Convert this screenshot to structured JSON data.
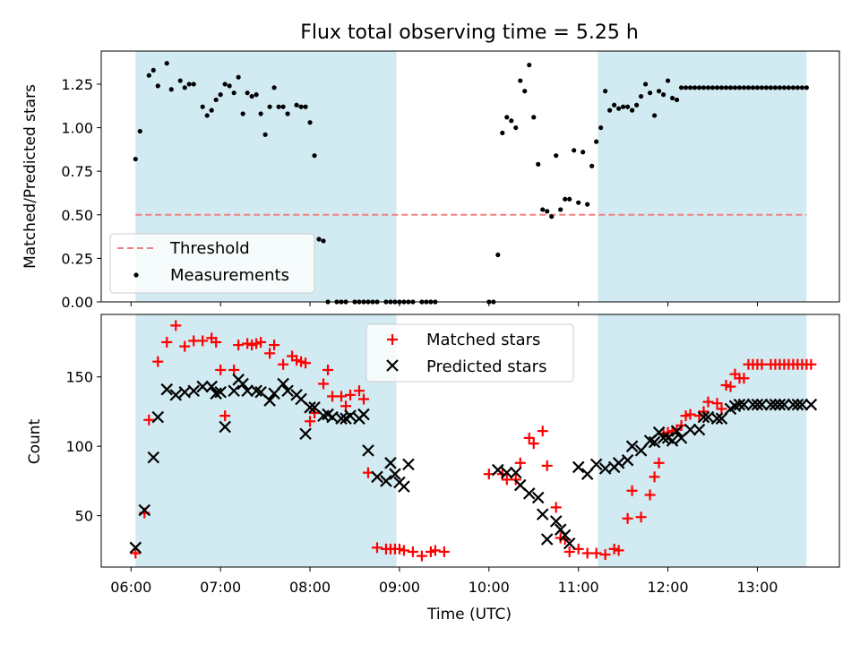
{
  "chart_data": [
    {
      "type": "scatter",
      "title": "Flux total observing time = 5.25 h",
      "ylabel": "Matched/Predicted stars",
      "xlabel": "",
      "xlim": [
        "05:40",
        "13:55"
      ],
      "ylim": [
        0,
        1.44
      ],
      "yticks": [
        0.0,
        0.25,
        0.5,
        0.75,
        1.0,
        1.25
      ],
      "ytick_labels": [
        "0.00",
        "0.25",
        "0.50",
        "0.75",
        "1.00",
        "1.25"
      ],
      "shaded_spans": [
        [
          "06:03",
          "08:58"
        ],
        [
          "11:13",
          "13:33"
        ]
      ],
      "shade_color": "#add8e6",
      "threshold": {
        "name": "Threshold",
        "y": 0.5,
        "color": "#f08080",
        "style": "dashed"
      },
      "legend_position": "lower left",
      "series": [
        {
          "name": "Measurements",
          "color": "#000000",
          "marker": "dot",
          "x": [
            "06:03",
            "06:06",
            "06:12",
            "06:15",
            "06:18",
            "06:24",
            "06:27",
            "06:33",
            "06:36",
            "06:39",
            "06:42",
            "06:48",
            "06:51",
            "06:54",
            "06:57",
            "07:00",
            "07:03",
            "07:06",
            "07:09",
            "07:12",
            "07:15",
            "07:18",
            "07:21",
            "07:24",
            "07:27",
            "07:30",
            "07:33",
            "07:36",
            "07:39",
            "07:42",
            "07:45",
            "07:51",
            "07:54",
            "07:57",
            "08:00",
            "08:03",
            "08:06",
            "08:09",
            "08:12",
            "08:18",
            "08:21",
            "08:24",
            "08:30",
            "08:33",
            "08:36",
            "08:39",
            "08:42",
            "08:45",
            "08:51",
            "08:54",
            "08:57",
            "09:00",
            "09:03",
            "09:06",
            "09:09",
            "09:15",
            "09:18",
            "09:21",
            "09:24",
            "10:00",
            "10:03",
            "10:06",
            "10:09",
            "10:12",
            "10:15",
            "10:18",
            "10:21",
            "10:24",
            "10:27",
            "10:30",
            "10:33",
            "10:36",
            "10:39",
            "10:42",
            "10:45",
            "10:48",
            "10:51",
            "10:54",
            "10:57",
            "11:00",
            "11:03",
            "11:06",
            "11:09",
            "11:12",
            "11:15",
            "11:18",
            "11:21",
            "11:24",
            "11:27",
            "11:30",
            "11:33",
            "11:36",
            "11:39",
            "11:42",
            "11:45",
            "11:48",
            "11:51",
            "11:54",
            "11:57",
            "12:00",
            "12:03",
            "12:06",
            "12:09",
            "12:12",
            "12:15",
            "12:18",
            "12:21",
            "12:24",
            "12:27",
            "12:30",
            "12:33",
            "12:36",
            "12:39",
            "12:42",
            "12:45",
            "12:48",
            "12:51",
            "12:54",
            "12:57",
            "13:00",
            "13:03",
            "13:06",
            "13:09",
            "13:12",
            "13:15",
            "13:18",
            "13:21",
            "13:24",
            "13:27",
            "13:30",
            "13:33"
          ],
          "values": [
            0.82,
            0.98,
            1.3,
            1.33,
            1.24,
            1.37,
            1.22,
            1.27,
            1.23,
            1.25,
            1.25,
            1.12,
            1.07,
            1.1,
            1.16,
            1.19,
            1.25,
            1.24,
            1.2,
            1.29,
            1.08,
            1.2,
            1.18,
            1.19,
            1.08,
            0.96,
            1.12,
            1.23,
            1.12,
            1.12,
            1.08,
            1.13,
            1.12,
            1.12,
            1.03,
            0.84,
            0.36,
            0.35,
            0.0,
            0.0,
            0.0,
            0.0,
            0.0,
            0.0,
            0.0,
            0.0,
            0.0,
            0.0,
            0.0,
            0.0,
            0.0,
            0.0,
            0.0,
            0.0,
            0.0,
            0.0,
            0.0,
            0.0,
            0.0,
            0.0,
            0.0,
            0.27,
            0.97,
            1.06,
            1.04,
            1.0,
            1.27,
            1.21,
            1.36,
            1.06,
            0.79,
            0.53,
            0.52,
            0.49,
            0.84,
            0.53,
            0.59,
            0.59,
            0.87,
            0.57,
            0.86,
            0.56,
            0.78,
            0.92,
            1.0,
            1.21,
            1.1,
            1.13,
            1.11,
            1.12,
            1.12,
            1.1,
            1.13,
            1.18,
            1.25,
            1.2,
            1.07,
            1.21,
            1.19,
            1.27,
            1.17,
            1.16,
            1.23,
            1.23,
            1.23,
            1.23,
            1.23,
            1.23,
            1.23,
            1.23,
            1.23,
            1.23,
            1.23,
            1.23,
            1.23,
            1.23,
            1.23,
            1.23,
            1.23,
            1.23,
            1.23,
            1.23,
            1.23,
            1.23,
            1.23,
            1.23,
            1.23,
            1.23,
            1.23,
            1.23,
            1.23
          ]
        }
      ]
    },
    {
      "type": "scatter",
      "title": "",
      "xlabel": "Time (UTC)",
      "ylabel": "Count",
      "xlim": [
        "05:40",
        "13:55"
      ],
      "ylim": [
        13,
        195
      ],
      "xticks": [
        "06:00",
        "07:00",
        "08:00",
        "09:00",
        "10:00",
        "11:00",
        "12:00",
        "13:00"
      ],
      "yticks": [
        50,
        100,
        150
      ],
      "shaded_spans": [
        [
          "06:03",
          "08:58"
        ],
        [
          "11:13",
          "13:33"
        ]
      ],
      "shade_color": "#add8e6",
      "legend_position": "upper center",
      "series": [
        {
          "name": "Matched stars",
          "color": "#ff0000",
          "marker": "plus",
          "x": [
            "06:03",
            "06:09",
            "06:12",
            "06:18",
            "06:24",
            "06:30",
            "06:36",
            "06:42",
            "06:48",
            "06:54",
            "06:57",
            "07:00",
            "07:03",
            "07:09",
            "07:12",
            "07:18",
            "07:21",
            "07:24",
            "07:27",
            "07:33",
            "07:36",
            "07:42",
            "07:48",
            "07:51",
            "07:54",
            "07:57",
            "08:00",
            "08:03",
            "08:09",
            "08:12",
            "08:15",
            "08:21",
            "08:24",
            "08:27",
            "08:33",
            "08:36",
            "08:39",
            "08:45",
            "08:51",
            "08:54",
            "08:57",
            "09:00",
            "09:03",
            "09:09",
            "09:15",
            "09:21",
            "09:24",
            "09:30",
            "10:00",
            "10:09",
            "10:12",
            "10:18",
            "10:21",
            "10:27",
            "10:30",
            "10:36",
            "10:39",
            "10:45",
            "10:48",
            "10:51",
            "10:54",
            "11:00",
            "11:06",
            "11:12",
            "11:18",
            "11:24",
            "11:27",
            "11:33",
            "11:36",
            "11:42",
            "11:48",
            "11:51",
            "11:54",
            "11:57",
            "12:00",
            "12:03",
            "12:06",
            "12:09",
            "12:12",
            "12:15",
            "12:21",
            "12:24",
            "12:27",
            "12:33",
            "12:36",
            "12:39",
            "12:42",
            "12:45",
            "12:48",
            "12:51",
            "12:54",
            "12:57",
            "13:00",
            "13:03",
            "13:09",
            "13:12",
            "13:15",
            "13:18",
            "13:21",
            "13:24",
            "13:27",
            "13:30",
            "13:33",
            "13:36"
          ],
          "values": [
            23,
            52,
            119,
            161,
            175,
            187,
            172,
            176,
            176,
            178,
            175,
            155,
            122,
            155,
            173,
            174,
            173,
            174,
            175,
            167,
            173,
            159,
            165,
            162,
            161,
            160,
            118,
            124,
            145,
            155,
            136,
            136,
            129,
            137,
            140,
            134,
            81,
            27,
            26,
            26,
            26,
            26,
            25,
            24,
            21,
            24,
            25,
            24,
            80,
            80,
            76,
            76,
            88,
            106,
            102,
            111,
            86,
            56,
            34,
            33,
            24,
            26,
            23,
            23,
            22,
            26,
            25,
            48,
            68,
            49,
            65,
            78,
            88,
            109,
            110,
            111,
            112,
            115,
            122,
            123,
            122,
            125,
            132,
            131,
            127,
            144,
            143,
            152,
            149,
            149,
            159,
            159,
            159,
            159,
            159,
            159,
            159,
            159,
            159,
            159,
            159,
            159,
            159,
            159
          ],
          "legend_label": "Matched stars"
        },
        {
          "name": "Predicted stars",
          "color": "#000000",
          "marker": "x",
          "x": [
            "06:03",
            "06:09",
            "06:15",
            "06:18",
            "06:24",
            "06:30",
            "06:36",
            "06:42",
            "06:48",
            "06:54",
            "06:57",
            "07:00",
            "07:03",
            "07:09",
            "07:12",
            "07:15",
            "07:18",
            "07:24",
            "07:27",
            "07:33",
            "07:36",
            "07:42",
            "07:45",
            "07:51",
            "07:54",
            "07:57",
            "08:00",
            "08:03",
            "08:09",
            "08:12",
            "08:15",
            "08:21",
            "08:24",
            "08:27",
            "08:33",
            "08:36",
            "08:39",
            "08:45",
            "08:51",
            "08:54",
            "08:57",
            "09:00",
            "09:03",
            "09:06",
            "10:06",
            "10:12",
            "10:18",
            "10:21",
            "10:27",
            "10:33",
            "10:36",
            "10:39",
            "10:45",
            "10:48",
            "10:51",
            "10:54",
            "11:00",
            "11:06",
            "11:12",
            "11:18",
            "11:24",
            "11:27",
            "11:33",
            "11:36",
            "11:42",
            "11:48",
            "11:51",
            "11:54",
            "11:57",
            "12:00",
            "12:03",
            "12:06",
            "12:09",
            "12:15",
            "12:21",
            "12:24",
            "12:27",
            "12:33",
            "12:36",
            "12:42",
            "12:45",
            "12:48",
            "12:51",
            "12:57",
            "13:00",
            "13:03",
            "13:09",
            "13:12",
            "13:15",
            "13:18",
            "13:24",
            "13:27",
            "13:30",
            "13:36"
          ],
          "values": [
            27,
            54,
            92,
            121,
            141,
            137,
            139,
            140,
            143,
            143,
            138,
            139,
            114,
            140,
            148,
            145,
            140,
            140,
            139,
            133,
            138,
            145,
            140,
            137,
            134,
            109,
            128,
            128,
            122,
            123,
            121,
            120,
            120,
            122,
            120,
            123,
            97,
            78,
            75,
            88,
            80,
            74,
            71,
            87,
            83,
            81,
            81,
            72,
            66,
            63,
            51,
            33,
            46,
            40,
            36,
            30,
            85,
            80,
            87,
            84,
            85,
            88,
            90,
            100,
            97,
            104,
            103,
            110,
            106,
            106,
            104,
            111,
            106,
            112,
            112,
            121,
            121,
            120,
            120,
            127,
            129,
            130,
            130,
            130,
            130,
            130,
            130,
            130,
            130,
            130,
            130,
            130,
            130,
            130
          ],
          "legend_label": "Predicted stars"
        }
      ]
    }
  ]
}
